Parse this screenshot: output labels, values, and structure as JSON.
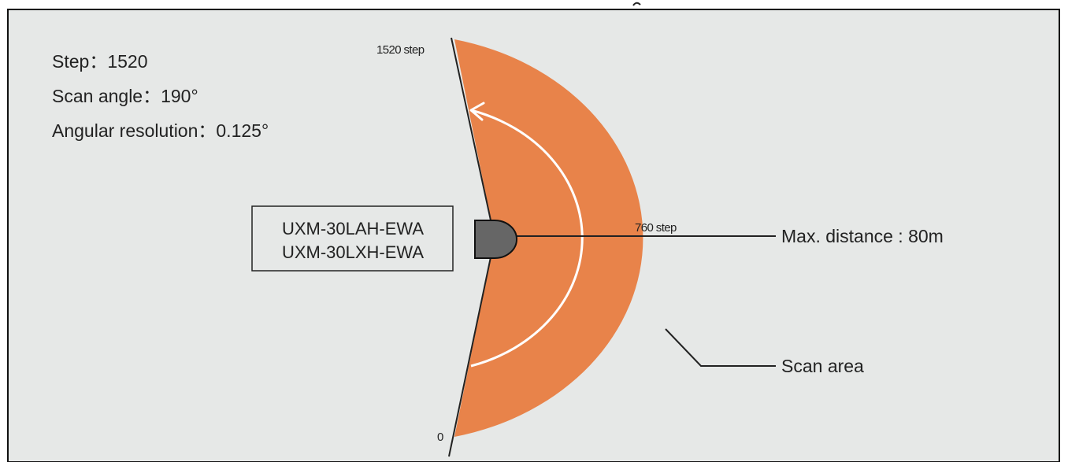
{
  "colors": {
    "panel_background": "#e6e8e7",
    "scan_area_fill": "#e8834a",
    "sensor_fill": "#666666",
    "line_color": "#222222",
    "arrow_color": "#ffffff"
  },
  "specs": {
    "step": "Step：1520",
    "scan_angle": "Scan angle：190°",
    "angular_resolution": "Angular resolution：0.125°"
  },
  "sensor": {
    "model_1": "UXM-30LAH-EWA",
    "model_2": "UXM-30LXH-EWA"
  },
  "step_labels": {
    "start": "0",
    "middle": "760 step",
    "end": "1520 step"
  },
  "callouts": {
    "max_distance": "Max. distance : 80m",
    "scan_area": "Scan area"
  },
  "icons": {
    "scan_direction": "curved-arrow-icon",
    "sensor": "sensor-head-icon"
  }
}
